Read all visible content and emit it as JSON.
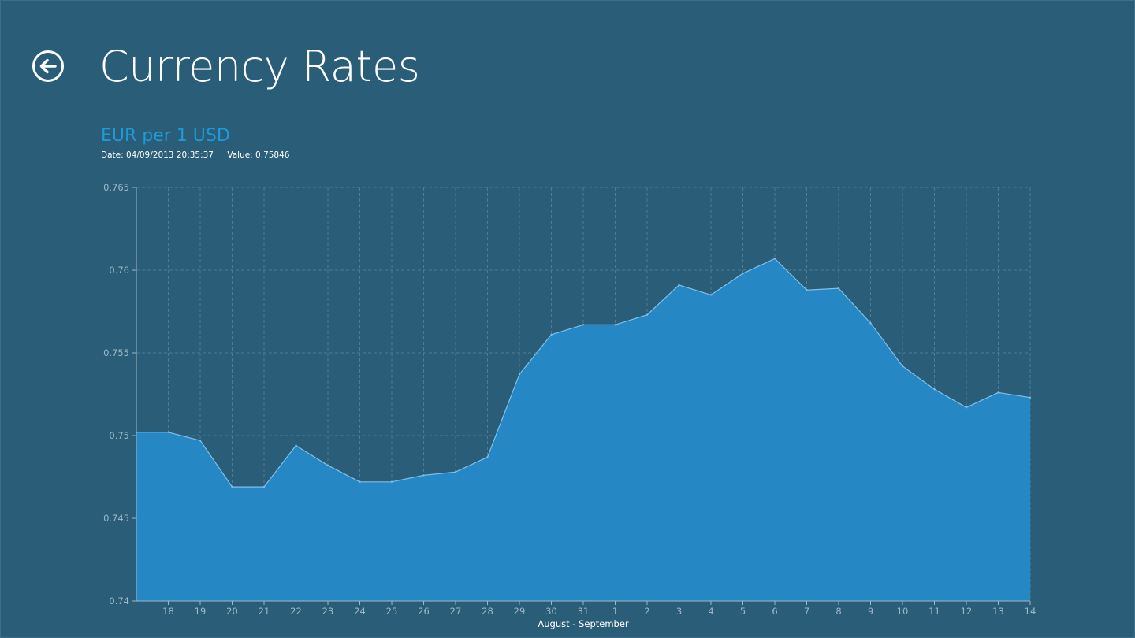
{
  "header": {
    "title": "Currency Rates",
    "back_icon": "arrow-left-circle-icon"
  },
  "chart_header": {
    "title": "EUR per 1 USD",
    "date_text": "Date: 04/09/2013 20:35:37",
    "value_text": "Value: 0.75846"
  },
  "colors": {
    "background": "#2a5d78",
    "title_accent": "#1e9ad8",
    "area_fill": "#2589c8",
    "area_line": "#7fc0ea",
    "grid": "#4d7c93",
    "axis_text": "#9db8c8"
  },
  "chart_data": {
    "type": "area",
    "title": "EUR per 1 USD",
    "xlabel": "August - September",
    "ylabel": "",
    "x": [
      "17",
      "18",
      "19",
      "20",
      "21",
      "22",
      "23",
      "24",
      "25",
      "26",
      "27",
      "28",
      "29",
      "30",
      "31",
      "1",
      "2",
      "3",
      "4",
      "5",
      "6",
      "7",
      "8",
      "9",
      "10",
      "11",
      "12",
      "13",
      "14"
    ],
    "x_tick_labels": [
      "18",
      "19",
      "20",
      "21",
      "22",
      "23",
      "24",
      "25",
      "26",
      "27",
      "28",
      "29",
      "30",
      "31",
      "1",
      "2",
      "3",
      "4",
      "5",
      "6",
      "7",
      "8",
      "9",
      "10",
      "11",
      "12",
      "13",
      "14"
    ],
    "values": [
      0.7502,
      0.7502,
      0.7497,
      0.7469,
      0.7469,
      0.7494,
      0.7482,
      0.7472,
      0.7472,
      0.7476,
      0.7478,
      0.7487,
      0.7537,
      0.7561,
      0.7567,
      0.7567,
      0.7573,
      0.7591,
      0.7585,
      0.7598,
      0.7607,
      0.7588,
      0.7589,
      0.7568,
      0.7542,
      0.7528,
      0.7517,
      0.7526,
      0.7523
    ],
    "ylim": [
      0.74,
      0.765
    ],
    "y_ticks": [
      0.74,
      0.745,
      0.75,
      0.755,
      0.76,
      0.765
    ],
    "y_tick_labels": [
      "0.74",
      "0.745",
      "0.75",
      "0.755",
      "0.76",
      "0.765"
    ],
    "grid": true,
    "legend": "none"
  }
}
